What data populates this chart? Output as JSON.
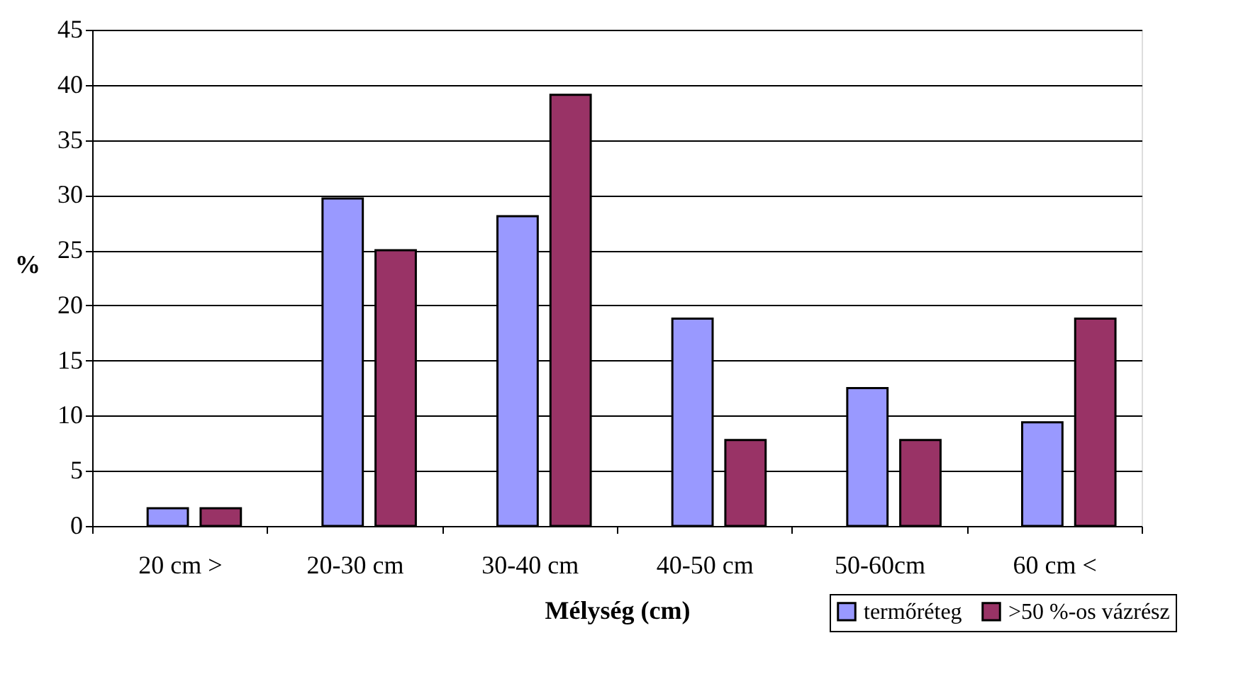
{
  "chart_data": {
    "type": "bar",
    "xlabel": "Mélység (cm)",
    "ylabel": "%",
    "categories": [
      "20 cm >",
      "20-30 cm",
      "30-40 cm",
      "40-50 cm",
      "50-60cm",
      "60 cm <"
    ],
    "series": [
      {
        "name": "termőréteg",
        "color": "#9999ff",
        "values": [
          1.6,
          29.7,
          28.1,
          18.8,
          12.5,
          9.4
        ]
      },
      {
        "name": ">50 %-os vázrész",
        "color": "#993366",
        "values": [
          1.6,
          25,
          39.1,
          7.8,
          7.8,
          18.8
        ]
      }
    ],
    "ylim": [
      0,
      45
    ],
    "yticks": [
      0,
      5,
      10,
      15,
      20,
      25,
      30,
      35,
      40,
      45
    ],
    "grid": "y",
    "legend": "bottom right"
  }
}
